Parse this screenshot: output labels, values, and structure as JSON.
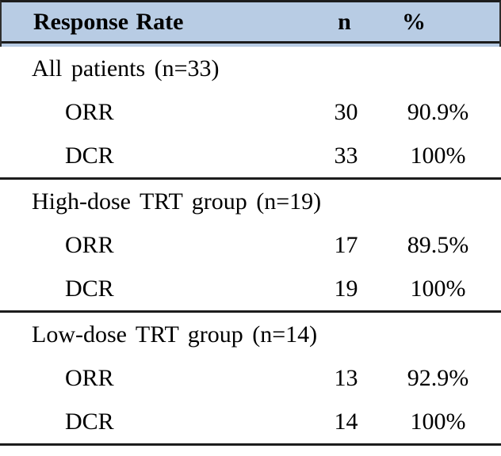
{
  "table": {
    "header": {
      "label": "Response Rate",
      "n": "n",
      "percent": "%"
    },
    "sections": [
      {
        "title": "All patients (n=33)",
        "rows": [
          {
            "label": "ORR",
            "n": "30",
            "pct": "90.9%"
          },
          {
            "label": "DCR",
            "n": "33",
            "pct": "100%"
          }
        ]
      },
      {
        "title": "High-dose TRT group (n=19)",
        "rows": [
          {
            "label": "ORR",
            "n": "17",
            "pct": "89.5%"
          },
          {
            "label": "DCR",
            "n": "19",
            "pct": "100%"
          }
        ]
      },
      {
        "title": "Low-dose TRT group (n=14)",
        "rows": [
          {
            "label": "ORR",
            "n": "13",
            "pct": "92.9%"
          },
          {
            "label": "DCR",
            "n": "14",
            "pct": "100%"
          }
        ]
      }
    ],
    "colors": {
      "header_bg": "#b8cce4",
      "rule": "#1c1c1c",
      "text": "#000000"
    }
  },
  "chart_data": {
    "type": "table",
    "title": "Response Rate",
    "columns": [
      "Response Rate",
      "n",
      "%"
    ],
    "rows": [
      [
        "All patients (n=33)",
        "",
        ""
      ],
      [
        "ORR",
        "30",
        "90.9%"
      ],
      [
        "DCR",
        "33",
        "100%"
      ],
      [
        "High-dose TRT group (n=19)",
        "",
        ""
      ],
      [
        "ORR",
        "17",
        "89.5%"
      ],
      [
        "DCR",
        "19",
        "100%"
      ],
      [
        "Low-dose TRT group (n=14)",
        "",
        ""
      ],
      [
        "ORR",
        "13",
        "92.9%"
      ],
      [
        "DCR",
        "14",
        "100%"
      ]
    ]
  }
}
